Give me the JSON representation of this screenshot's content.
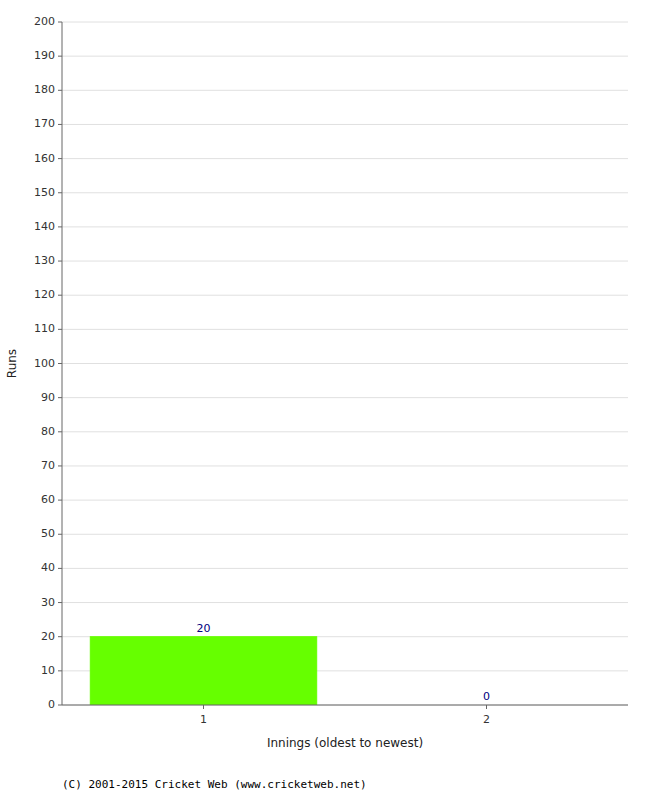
{
  "chart_data": {
    "type": "bar",
    "xlabel": "Innings (oldest to newest)",
    "ylabel": "Runs",
    "x": [
      1,
      2
    ],
    "values": [
      20,
      0
    ],
    "color": "#66ff00",
    "xlim": [
      0.5,
      2.5
    ],
    "xticks": [
      1,
      2
    ],
    "ylim": [
      0,
      200
    ],
    "yticks": [
      0,
      10,
      20,
      30,
      40,
      50,
      60,
      70,
      80,
      90,
      100,
      110,
      120,
      130,
      140,
      150,
      160,
      170,
      180,
      190,
      200
    ],
    "grid": true,
    "data_labels": true,
    "annotations": [
      "(C) 2001-2015 Cricket Web (www.cricketweb.net)"
    ]
  }
}
